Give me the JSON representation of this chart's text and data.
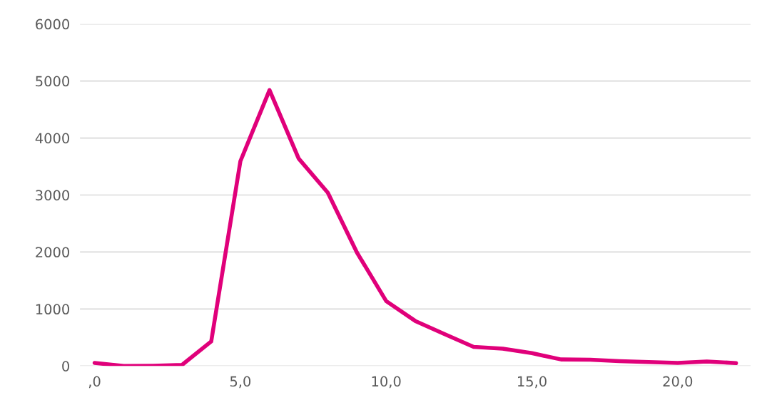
{
  "chart_data": {
    "type": "line",
    "x": [
      0,
      1,
      2,
      3,
      4,
      5,
      6,
      7,
      8,
      9,
      10,
      11,
      12,
      13,
      14,
      15,
      16,
      17,
      18,
      19,
      20,
      21,
      22
    ],
    "series": [
      {
        "color": "#e0007a",
        "values": [
          55,
          0,
          5,
          20,
          430,
          3590,
          4840,
          3640,
          3040,
          1990,
          1140,
          790,
          560,
          335,
          305,
          225,
          115,
          110,
          85,
          70,
          55,
          80,
          50
        ]
      }
    ],
    "xlim": [
      -0.5,
      22.5
    ],
    "xticks": [
      {
        "value": 0,
        "label": ",0"
      },
      {
        "value": 5,
        "label": "5,0"
      },
      {
        "value": 10,
        "label": "10,0"
      },
      {
        "value": 15,
        "label": "15,0"
      },
      {
        "value": 20,
        "label": "20,0"
      }
    ],
    "ylim": [
      0,
      6000
    ],
    "yticks": [
      0,
      1000,
      2000,
      3000,
      4000,
      5000,
      6000
    ],
    "grid": "y",
    "marker": "none",
    "line_style": "solid"
  }
}
